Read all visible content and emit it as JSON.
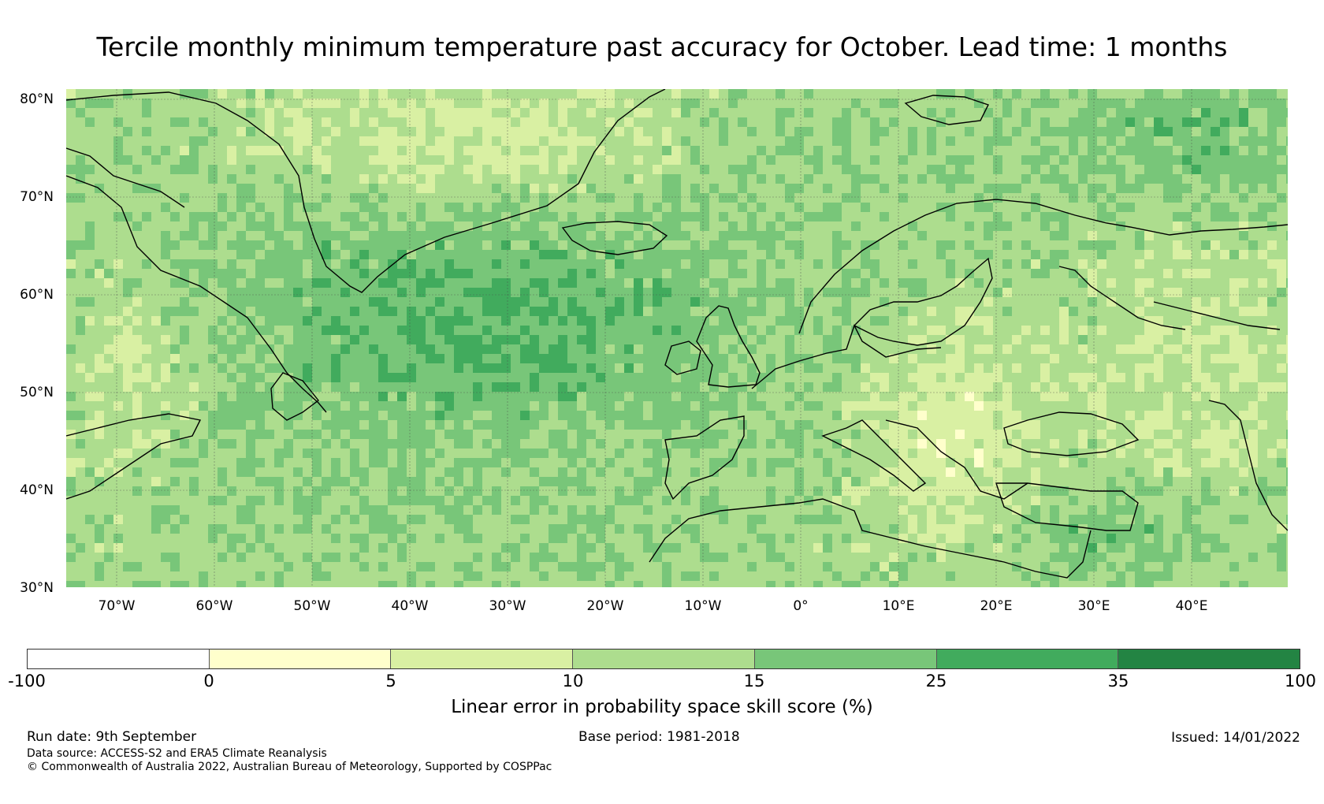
{
  "title": "Tercile monthly minimum temperature past accuracy for October. Lead time: 1 months",
  "map": {
    "type": "gridded skill score map",
    "lon_range": [
      -75,
      50
    ],
    "lat_range": [
      30,
      81
    ],
    "lat_labels": [
      "80°N",
      "70°N",
      "60°N",
      "50°N",
      "40°N",
      "30°N"
    ],
    "lon_labels": [
      "70°W",
      "60°W",
      "50°W",
      "40°W",
      "30°W",
      "20°W",
      "10°W",
      "0°",
      "10°E",
      "20°E",
      "30°E",
      "40°E"
    ],
    "gridlines": true
  },
  "colorbar": {
    "label": "Linear error in probability space skill score (%)",
    "ticks": [
      "-100",
      "0",
      "5",
      "10",
      "15",
      "25",
      "35",
      "100"
    ],
    "colors": [
      "#ffffff",
      "#ffffcc",
      "#d9f0a3",
      "#addd8e",
      "#78c679",
      "#41ab5d",
      "#238443"
    ]
  },
  "footer": {
    "run_date": "Run date: 9th September",
    "data_source": "Data source: ACCESS-S2 and ERA5 Climate Reanalysis",
    "copyright": "© Commonwealth of Australia 2022, Australian Bureau of Meteorology, Supported by COSPPac",
    "base_period": "Base period: 1981-2018",
    "issued": "Issued: 14/01/2022"
  }
}
